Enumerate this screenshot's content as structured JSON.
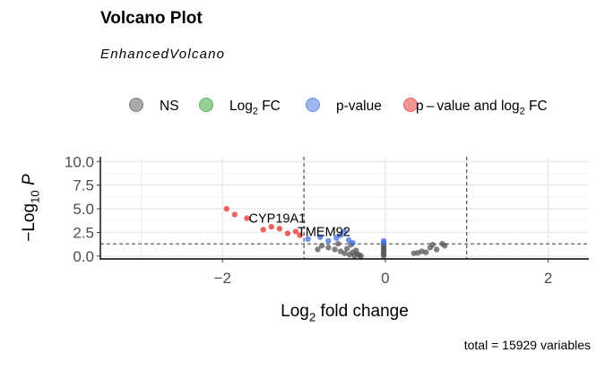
{
  "header": {
    "title": "Volcano Plot",
    "subtitle": "EnhancedVolcano",
    "caption": "total = 15929 variables"
  },
  "chart_data": {
    "type": "scatter",
    "xlabel": "Log2 fold change",
    "ylabel": "-Log10 P",
    "xlim": [
      -3.5,
      2.5
    ],
    "ylim": [
      -0.3,
      10.5
    ],
    "x_ticks": [
      -2,
      0,
      2
    ],
    "y_ticks": [
      0.0,
      2.5,
      5.0,
      7.5,
      10.0
    ],
    "grid": true,
    "legend_position": "top",
    "fc_cutoff": 1,
    "p_cutoff_log10": 1.3,
    "colors": {
      "NS": "#555555",
      "Log2 FC": "#2ca02c",
      "p-value": "#3b6fe0",
      "p-value and log2 FC": "#e8302c"
    },
    "series": [
      {
        "name": "NS",
        "points": [
          [
            -0.83,
            0.7
          ],
          [
            -0.78,
            1.1
          ],
          [
            -0.7,
            0.9
          ],
          [
            -0.62,
            0.7
          ],
          [
            -0.58,
            1.3
          ],
          [
            -0.55,
            0.5
          ],
          [
            -0.5,
            0.3
          ],
          [
            -0.47,
            0.8
          ],
          [
            -0.44,
            0.15
          ],
          [
            -0.42,
            1.2
          ],
          [
            -0.4,
            0.4
          ],
          [
            -0.38,
            0.05
          ],
          [
            -0.36,
            0.6
          ],
          [
            -0.34,
            0.2
          ],
          [
            -0.32,
            0.1
          ],
          [
            -0.3,
            0.02
          ],
          [
            -0.02,
            0.05
          ],
          [
            -0.02,
            0.2
          ],
          [
            -0.02,
            0.4
          ],
          [
            -0.02,
            0.6
          ],
          [
            -0.02,
            0.8
          ],
          [
            -0.02,
            1.0
          ],
          [
            -0.02,
            1.2
          ],
          [
            0.35,
            0.3
          ],
          [
            0.4,
            0.35
          ],
          [
            0.45,
            0.5
          ],
          [
            0.5,
            0.4
          ],
          [
            0.55,
            0.9
          ],
          [
            0.58,
            1.2
          ],
          [
            0.63,
            0.7
          ],
          [
            0.7,
            1.3
          ],
          [
            0.73,
            1.1
          ]
        ]
      },
      {
        "name": "Log2 FC",
        "points": []
      },
      {
        "name": "p-value",
        "points": [
          [
            -0.95,
            1.8
          ],
          [
            -0.8,
            2.0
          ],
          [
            -0.7,
            1.6
          ],
          [
            -0.6,
            1.9
          ],
          [
            -0.55,
            2.2
          ],
          [
            -0.5,
            2.6
          ],
          [
            -0.45,
            1.7
          ],
          [
            -0.4,
            1.4
          ],
          [
            -0.02,
            1.4
          ],
          [
            -0.02,
            1.6
          ]
        ]
      },
      {
        "name": "p-value and log2 FC",
        "labels": [
          "",
          "",
          "CYP19A1",
          "",
          "",
          "",
          "",
          "TMEM92",
          ""
        ],
        "points": [
          [
            -1.95,
            5.0
          ],
          [
            -1.85,
            4.4
          ],
          [
            -1.7,
            4.0
          ],
          [
            -1.5,
            2.8
          ],
          [
            -1.4,
            3.1
          ],
          [
            -1.3,
            2.9
          ],
          [
            -1.2,
            2.4
          ],
          [
            -1.1,
            2.6
          ],
          [
            -1.05,
            2.2
          ]
        ]
      }
    ]
  }
}
